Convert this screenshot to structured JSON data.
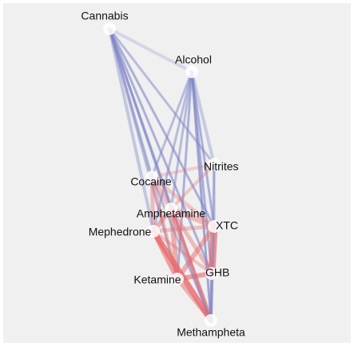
{
  "nodes": [
    {
      "label": "Cannabis"
    },
    {
      "label": "Alcohol"
    },
    {
      "label": "Nitrites"
    },
    {
      "label": "Cocaine"
    },
    {
      "label": "Amphetamine"
    },
    {
      "label": "XTC"
    },
    {
      "label": "Mephedrone"
    },
    {
      "label": "Ketamine"
    },
    {
      "label": "GHB"
    },
    {
      "label": "Methampheta"
    }
  ]
}
